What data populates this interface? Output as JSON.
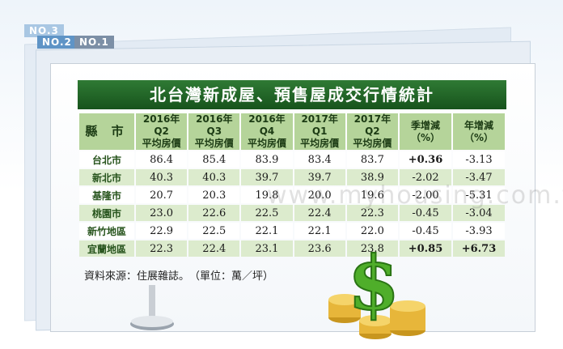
{
  "tabs": [
    "NO.3",
    "NO.2",
    "NO.1"
  ],
  "title": "北台灣新成屋、預售屋成交行情統計",
  "chart_data": {
    "type": "table",
    "title": "北台灣新成屋、預售屋成交行情統計",
    "columns": [
      "縣市",
      "2016年Q2 平均房價",
      "2016年Q3 平均房價",
      "2016年Q4 平均房價",
      "2017年Q1 平均房價",
      "2017年Q2 平均房價",
      "季增減（%）",
      "年增減（%）"
    ],
    "header": {
      "county": "縣 市",
      "periods": [
        {
          "line1": "2016年Q2",
          "line2": "平均房價"
        },
        {
          "line1": "2016年Q3",
          "line2": "平均房價"
        },
        {
          "line1": "2016年Q4",
          "line2": "平均房價"
        },
        {
          "line1": "2017年Q1",
          "line2": "平均房價"
        },
        {
          "line1": "2017年Q2",
          "line2": "平均房價"
        }
      ],
      "qoq": {
        "line1": "季增減",
        "line2": "（%）"
      },
      "yoy": {
        "line1": "年增減",
        "line2": "（%）"
      }
    },
    "rows": [
      {
        "county": "台北市",
        "prices": [
          "86.4",
          "85.4",
          "83.9",
          "83.4",
          "83.7"
        ],
        "qoq": "+0.36",
        "yoy": "-3.13"
      },
      {
        "county": "新北市",
        "prices": [
          "40.3",
          "40.3",
          "39.7",
          "39.7",
          "38.9"
        ],
        "qoq": "-2.02",
        "yoy": "-3.47"
      },
      {
        "county": "基隆市",
        "prices": [
          "20.7",
          "20.3",
          "19.8",
          "20.0",
          "19.6"
        ],
        "qoq": "-2.00",
        "yoy": "-5.31"
      },
      {
        "county": "桃園市",
        "prices": [
          "23.0",
          "22.6",
          "22.5",
          "22.4",
          "22.3"
        ],
        "qoq": "-0.45",
        "yoy": "-3.04"
      },
      {
        "county": "新竹地區",
        "prices": [
          "22.9",
          "22.5",
          "22.1",
          "22.1",
          "22.0"
        ],
        "qoq": "-0.45",
        "yoy": "-3.93"
      },
      {
        "county": "宜蘭地區",
        "prices": [
          "22.3",
          "22.4",
          "23.1",
          "23.6",
          "23.8"
        ],
        "qoq": "+0.85",
        "yoy": "+6.73"
      }
    ],
    "positive_color": "#d9261c"
  },
  "source": "資料來源：住展雜誌。　（單位：萬／坪）",
  "watermark": "www.myhousing.com.tw",
  "colors": {
    "title_bg": "#1f6425",
    "header_bg": "#b5d49a",
    "row_alt": "#dcebcd"
  },
  "icons": [
    "dollar-sign-icon",
    "gold-coins-icon",
    "tablet-stand-icon"
  ]
}
